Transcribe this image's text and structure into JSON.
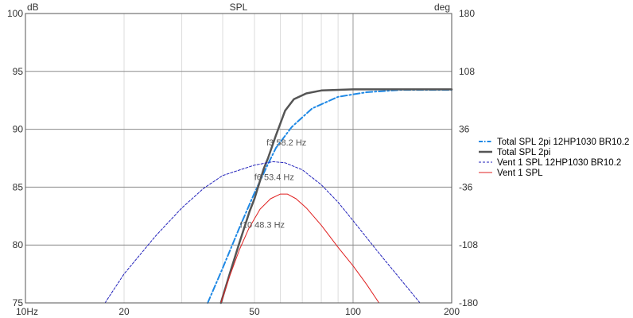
{
  "chart_data": {
    "type": "line",
    "title": "SPL",
    "ylabel": "dB",
    "y2label": "deg",
    "xscale": "log",
    "xlim": [
      10,
      200
    ],
    "ylim": [
      75,
      100
    ],
    "y2lim": [
      -180,
      180
    ],
    "grid": true,
    "legend_position": "right",
    "x_ticks": [
      {
        "value": 10,
        "label": "10Hz"
      },
      {
        "value": 20,
        "label": "20"
      },
      {
        "value": 50,
        "label": "50"
      },
      {
        "value": 100,
        "label": "100"
      },
      {
        "value": 200,
        "label": "200"
      }
    ],
    "y_ticks": [
      {
        "value": 75,
        "label": "75"
      },
      {
        "value": 80,
        "label": "80"
      },
      {
        "value": 85,
        "label": "85"
      },
      {
        "value": 90,
        "label": "90"
      },
      {
        "value": 95,
        "label": "95"
      },
      {
        "value": 100,
        "label": "100"
      }
    ],
    "y2_ticks": [
      {
        "value": -180,
        "label": "-180"
      },
      {
        "value": -108,
        "label": "-108"
      },
      {
        "value": -36,
        "label": "-36"
      },
      {
        "value": 36,
        "label": "36"
      },
      {
        "value": 108,
        "label": "108"
      },
      {
        "value": 180,
        "label": "180"
      }
    ],
    "series": [
      {
        "name": "Total SPL 2pi 12HP1030 BR10.2",
        "color": "#1e88e5",
        "style": "dashdot",
        "points": [
          [
            36,
            75
          ],
          [
            40,
            78
          ],
          [
            45,
            81.5
          ],
          [
            50,
            84.5
          ],
          [
            55,
            87
          ],
          [
            58.2,
            88.4
          ],
          [
            65,
            90.2
          ],
          [
            75,
            91.8
          ],
          [
            90,
            92.8
          ],
          [
            110,
            93.2
          ],
          [
            140,
            93.4
          ],
          [
            200,
            93.4
          ]
        ]
      },
      {
        "name": "Total SPL 2pi",
        "color": "#555555",
        "style": "solid",
        "points": [
          [
            39.5,
            75
          ],
          [
            42,
            77.5
          ],
          [
            45,
            80.2
          ],
          [
            48.3,
            82.9
          ],
          [
            50,
            84
          ],
          [
            53.4,
            86.6
          ],
          [
            55,
            87.5
          ],
          [
            58.2,
            89.5
          ],
          [
            62,
            91.6
          ],
          [
            66,
            92.6
          ],
          [
            72,
            93.1
          ],
          [
            80,
            93.35
          ],
          [
            100,
            93.45
          ],
          [
            200,
            93.45
          ]
        ]
      },
      {
        "name": "Vent 1 SPL 12HP1030 BR10.2",
        "color": "#2222bb",
        "style": "dotted",
        "points": [
          [
            17.5,
            75
          ],
          [
            20,
            77.5
          ],
          [
            25,
            80.8
          ],
          [
            30,
            83.2
          ],
          [
            35,
            84.9
          ],
          [
            40,
            86
          ],
          [
            50,
            86.9
          ],
          [
            57,
            87.2
          ],
          [
            62,
            87.1
          ],
          [
            70,
            86.5
          ],
          [
            80,
            85.2
          ],
          [
            90,
            83.7
          ],
          [
            100,
            82.1
          ],
          [
            120,
            79.3
          ],
          [
            140,
            77
          ],
          [
            160,
            75
          ]
        ]
      },
      {
        "name": "Vent 1 SPL",
        "color": "#e02020",
        "style": "solid",
        "points": [
          [
            39.5,
            75
          ],
          [
            42,
            77.3
          ],
          [
            45,
            79.6
          ],
          [
            48,
            81.4
          ],
          [
            52,
            83.1
          ],
          [
            56,
            84
          ],
          [
            60,
            84.4
          ],
          [
            63,
            84.4
          ],
          [
            67,
            84
          ],
          [
            72,
            83.2
          ],
          [
            80,
            81.7
          ],
          [
            90,
            79.8
          ],
          [
            100,
            78.2
          ],
          [
            110,
            76.6
          ],
          [
            120,
            75
          ]
        ]
      }
    ],
    "annotations": [
      {
        "text": "f3 58.2 Hz",
        "x": 58.2,
        "y": 88.4
      },
      {
        "text": "f6 53.4 Hz",
        "x": 53.4,
        "y": 85.4
      },
      {
        "text": "f10 48.3 Hz",
        "x": 48.3,
        "y": 81.3
      }
    ]
  }
}
